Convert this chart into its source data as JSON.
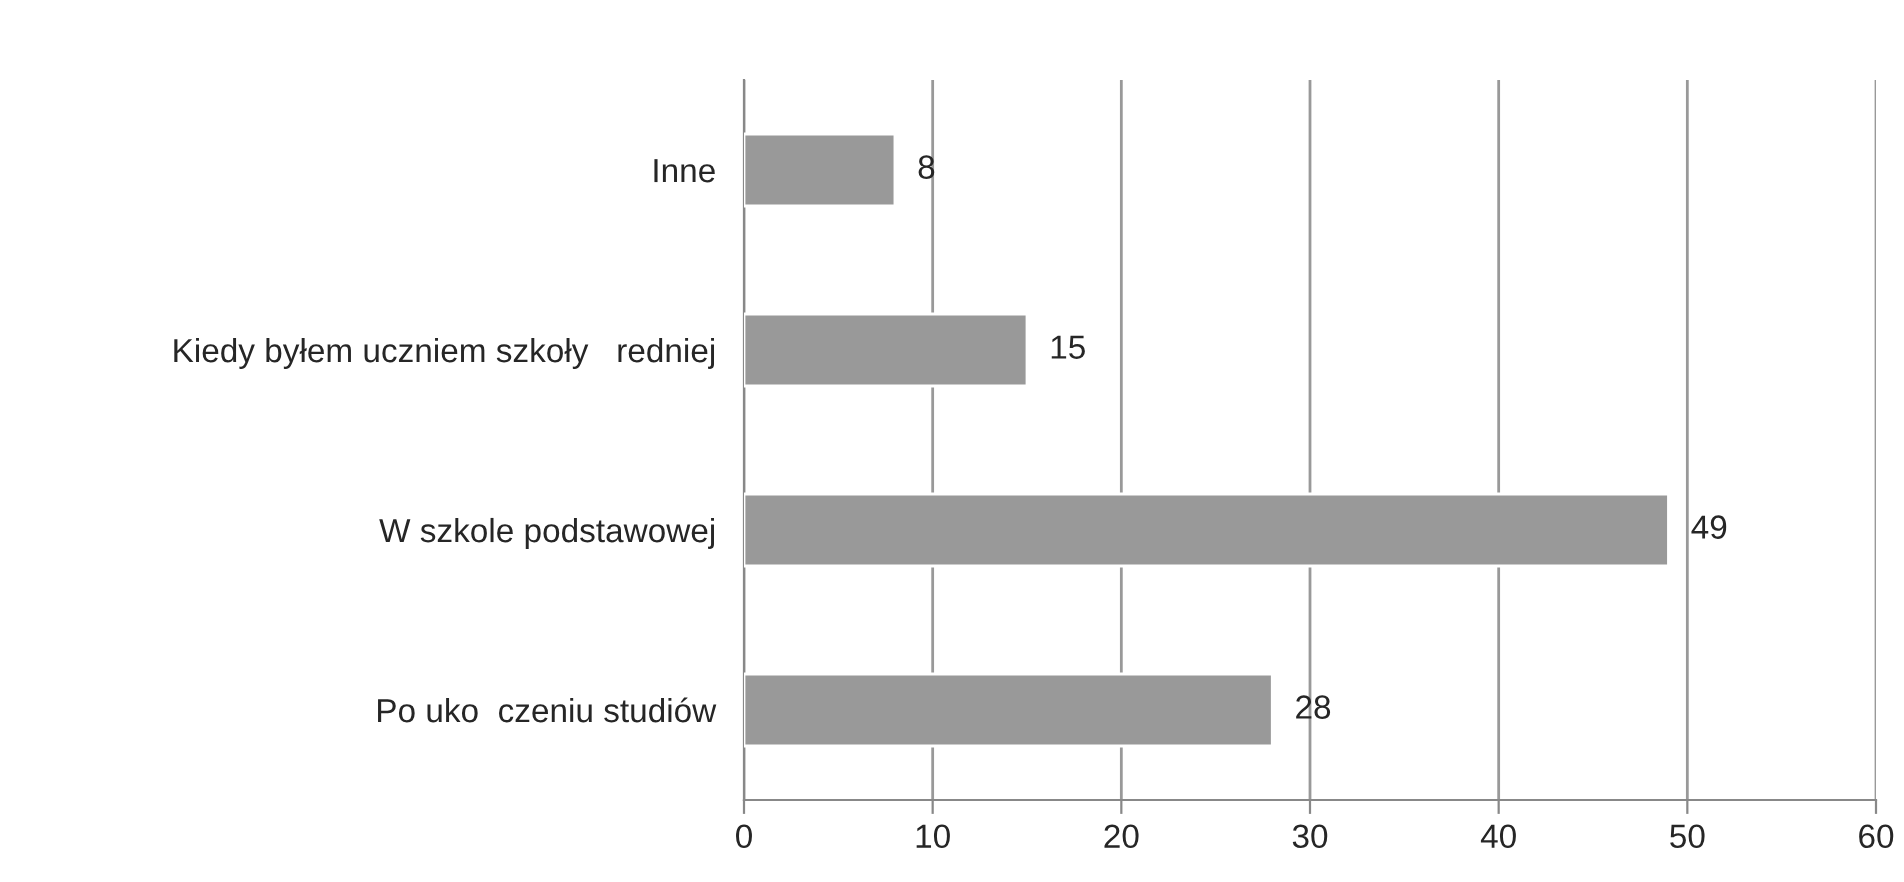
{
  "chart_data": {
    "type": "bar",
    "orientation": "horizontal",
    "categories": [
      "Inne",
      "Kiedy byłem uczniem szkoły   redniej",
      "W szkole podstawowej",
      "Po uko  czeniu studiów"
    ],
    "values": [
      8,
      15,
      49,
      28
    ],
    "color": "#999999",
    "xlim": [
      0,
      60
    ],
    "xticks": [
      0,
      10,
      20,
      30,
      40,
      50,
      60
    ],
    "grid": "x",
    "data_labels": true,
    "legend": false
  }
}
